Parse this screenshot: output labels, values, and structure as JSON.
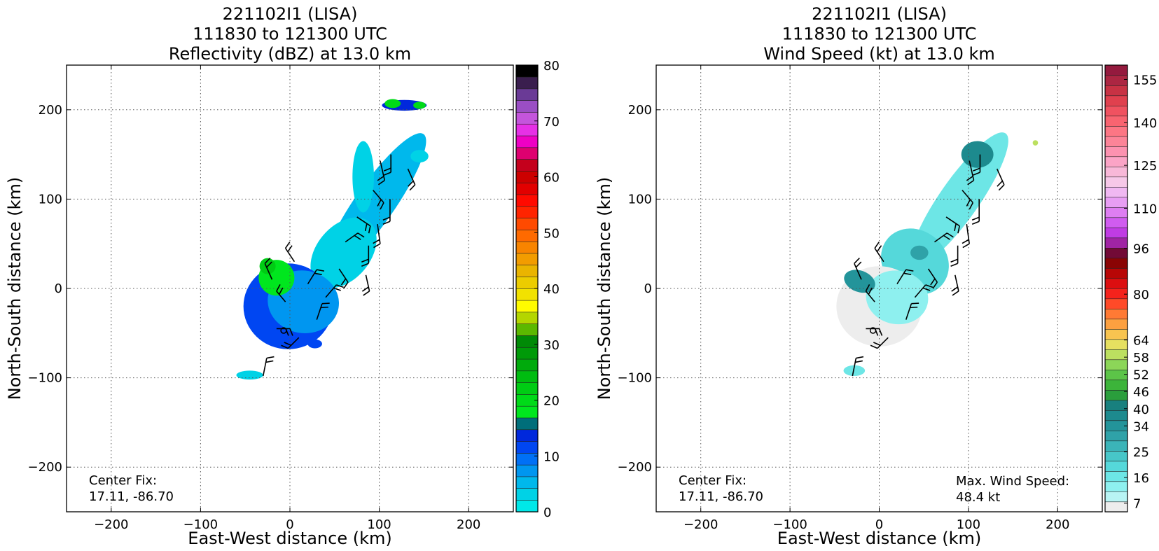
{
  "chart_data": [
    {
      "type": "heatmap",
      "title_lines": [
        "221102I1 (LISA)",
        "111830 to 121300 UTC",
        "Reflectivity (dBZ) at 13.0 km"
      ],
      "xlabel": "East-West distance (km)",
      "ylabel": "North-South distance (km)",
      "xlim": [
        -250,
        250
      ],
      "ylim": [
        -250,
        250
      ],
      "xticks": [
        -200,
        -100,
        0,
        100,
        200
      ],
      "yticks": [
        -200,
        -100,
        0,
        100,
        200
      ],
      "grid": true,
      "annotations": [
        {
          "lines": [
            "Center Fix:",
            "17.11, -86.70"
          ],
          "anchor": "bottom-left"
        }
      ],
      "colorbar": {
        "min": 0,
        "max": 80,
        "step": 2.5,
        "tick_labels": [
          "0",
          "10",
          "20",
          "30",
          "40",
          "50",
          "60",
          "70",
          "80"
        ],
        "tick_values": [
          0,
          10,
          20,
          30,
          40,
          50,
          60,
          70,
          80
        ],
        "colors": [
          "#00e8e8",
          "#00d2e6",
          "#00b8ec",
          "#0096f0",
          "#0070f6",
          "#0046f2",
          "#0028dc",
          "#006e7a",
          "#00e61e",
          "#00da18",
          "#00cc14",
          "#00bc10",
          "#00aa0c",
          "#009a08",
          "#008a06",
          "#5cb800",
          "#b4d600",
          "#fffc00",
          "#f2e200",
          "#eccc00",
          "#eab400",
          "#f29c00",
          "#f88400",
          "#ff6a00",
          "#ff4a00",
          "#ff2400",
          "#ff0a00",
          "#e20000",
          "#cc0000",
          "#c4001c",
          "#de0070",
          "#ee00c4",
          "#e630e6",
          "#c455dc",
          "#9a4ec4",
          "#6a3a96",
          "#3a1e4e",
          "#000000"
        ]
      },
      "echo_blobs": [
        {
          "cx": 95,
          "cy": 95,
          "rx": 22,
          "ry": 95,
          "rot": 35,
          "level": 2
        },
        {
          "cx": 60,
          "cy": 40,
          "rx": 30,
          "ry": 45,
          "rot": 40,
          "level": 1
        },
        {
          "cx": -2,
          "cy": -20,
          "rx": 50,
          "ry": 48,
          "rot": 0,
          "level": 5
        },
        {
          "cx": 15,
          "cy": -15,
          "rx": 40,
          "ry": 35,
          "rot": 10,
          "level": 3
        },
        {
          "cx": -15,
          "cy": 12,
          "rx": 20,
          "ry": 20,
          "rot": 0,
          "level": 8
        },
        {
          "cx": -25,
          "cy": 25,
          "rx": 9,
          "ry": 9,
          "rot": 0,
          "level": 10
        },
        {
          "cx": 128,
          "cy": 205,
          "rx": 25,
          "ry": 6,
          "rot": 0,
          "level": 6
        },
        {
          "cx": 115,
          "cy": 207,
          "rx": 9,
          "ry": 5,
          "rot": 0,
          "level": 9
        },
        {
          "cx": 145,
          "cy": 205,
          "rx": 7,
          "ry": 4,
          "rot": 0,
          "level": 9
        },
        {
          "cx": 82,
          "cy": 125,
          "rx": 12,
          "ry": 40,
          "rot": 0,
          "level": 1
        },
        {
          "cx": 145,
          "cy": 148,
          "rx": 10,
          "ry": 7,
          "rot": 0,
          "level": 1
        },
        {
          "cx": -45,
          "cy": -97,
          "rx": 15,
          "ry": 5,
          "rot": 0,
          "level": 1
        },
        {
          "cx": 28,
          "cy": -62,
          "rx": 8,
          "ry": 5,
          "rot": 0,
          "level": 5
        }
      ],
      "wind_barbs": [
        {
          "x": 113,
          "y": 150,
          "u": 0,
          "v": -20
        },
        {
          "x": 101,
          "y": 143,
          "u": 5,
          "v": -22
        },
        {
          "x": 132,
          "y": 134,
          "u": 8,
          "v": -18
        },
        {
          "x": 93,
          "y": 110,
          "u": 12,
          "v": -14
        },
        {
          "x": 112,
          "y": 100,
          "u": 0,
          "v": -25
        },
        {
          "x": 75,
          "y": 80,
          "u": 15,
          "v": -10
        },
        {
          "x": 98,
          "y": 72,
          "u": 3,
          "v": -22
        },
        {
          "x": 62,
          "y": 52,
          "u": 14,
          "v": 10
        },
        {
          "x": 88,
          "y": 48,
          "u": 0,
          "v": -20
        },
        {
          "x": 55,
          "y": 22,
          "u": 10,
          "v": -15
        },
        {
          "x": 85,
          "y": 15,
          "u": 4,
          "v": -18
        },
        {
          "x": 5,
          "y": 30,
          "u": -10,
          "v": 15
        },
        {
          "x": -20,
          "y": 10,
          "u": -8,
          "v": 18
        },
        {
          "x": 20,
          "y": 5,
          "u": 10,
          "v": 16
        },
        {
          "x": 40,
          "y": -10,
          "u": 12,
          "v": 14
        },
        {
          "x": -5,
          "y": -15,
          "u": -10,
          "v": 12
        },
        {
          "x": 30,
          "y": -35,
          "u": 6,
          "v": 18
        },
        {
          "x": 10,
          "y": -55,
          "u": -12,
          "v": -12
        },
        {
          "x": -15,
          "y": -45,
          "u": 15,
          "v": 0
        },
        {
          "x": -30,
          "y": -98,
          "u": 4,
          "v": 20
        }
      ],
      "center_marker": {
        "x": -7,
        "y": -47
      }
    },
    {
      "type": "heatmap",
      "title_lines": [
        "221102I1 (LISA)",
        "111830 to 121300 UTC",
        "Wind Speed (kt) at 13.0 km"
      ],
      "xlabel": "East-West distance (km)",
      "ylabel": "North-South distance (km)",
      "xlim": [
        -250,
        250
      ],
      "ylim": [
        -250,
        250
      ],
      "xticks": [
        -200,
        -100,
        0,
        100,
        200
      ],
      "yticks": [
        -200,
        -100,
        0,
        100,
        200
      ],
      "grid": true,
      "annotations": [
        {
          "lines": [
            "Center Fix:",
            "17.11, -86.70"
          ],
          "anchor": "bottom-left"
        },
        {
          "lines": [
            "Max. Wind Speed:",
            "48.4 kt"
          ],
          "anchor": "bottom-right"
        }
      ],
      "colorbar": {
        "min": 4,
        "max": 160,
        "step": 3,
        "tick_labels": [
          "7",
          "16",
          "25",
          "34",
          "40",
          "46",
          "52",
          "58",
          "64",
          "80",
          "96",
          "110",
          "125",
          "140",
          "155"
        ],
        "tick_values": [
          7,
          16,
          25,
          34,
          40,
          46,
          52,
          58,
          64,
          80,
          96,
          110,
          125,
          140,
          155
        ],
        "colors": [
          "#ededed",
          "#b8f4f4",
          "#8ef0ef",
          "#6de6e6",
          "#55d8da",
          "#47c6c8",
          "#3bb4b8",
          "#2fa2a8",
          "#23949a",
          "#1d8a8e",
          "#18807e",
          "#2a9e3c",
          "#3cb43a",
          "#5cc448",
          "#8cd658",
          "#bce060",
          "#e6e060",
          "#f8c450",
          "#fca040",
          "#ff7a34",
          "#ff4a28",
          "#f4221c",
          "#dc0e10",
          "#b80606",
          "#8a0404",
          "#720a36",
          "#a024a4",
          "#c03ce4",
          "#d05cf0",
          "#de7ef2",
          "#e89ef4",
          "#f0b8f2",
          "#f6c8e8",
          "#f8b8d8",
          "#fba4c6",
          "#fc92b0",
          "#fc8498",
          "#fc7684",
          "#f86470",
          "#f05260",
          "#e0404e",
          "#c83244",
          "#ac2642",
          "#941a3e"
        ]
      },
      "speed_blobs": [
        {
          "cx": 90,
          "cy": 100,
          "rx": 22,
          "ry": 90,
          "rot": 35,
          "level": 3
        },
        {
          "cx": 110,
          "cy": 150,
          "rx": 18,
          "ry": 15,
          "rot": 0,
          "level": 9
        },
        {
          "cx": 40,
          "cy": 30,
          "rx": 40,
          "ry": 35,
          "rot": 40,
          "level": 4
        },
        {
          "cx": 0,
          "cy": -20,
          "rx": 48,
          "ry": 45,
          "rot": 0,
          "level": 0
        },
        {
          "cx": 20,
          "cy": -10,
          "rx": 35,
          "ry": 30,
          "rot": 10,
          "level": 2
        },
        {
          "cx": -22,
          "cy": 8,
          "rx": 18,
          "ry": 12,
          "rot": 20,
          "level": 8
        },
        {
          "cx": 45,
          "cy": 40,
          "rx": 10,
          "ry": 8,
          "rot": 0,
          "level": 7
        },
        {
          "cx": -28,
          "cy": -92,
          "rx": 12,
          "ry": 6,
          "rot": 0,
          "level": 3
        },
        {
          "cx": 175,
          "cy": 163,
          "rx": 3,
          "ry": 3,
          "rot": 0,
          "level": 15
        }
      ],
      "wind_barbs": [
        {
          "x": 113,
          "y": 150,
          "u": 0,
          "v": -20
        },
        {
          "x": 101,
          "y": 143,
          "u": 5,
          "v": -22
        },
        {
          "x": 132,
          "y": 134,
          "u": 8,
          "v": -18
        },
        {
          "x": 93,
          "y": 110,
          "u": 12,
          "v": -14
        },
        {
          "x": 112,
          "y": 100,
          "u": 0,
          "v": -25
        },
        {
          "x": 75,
          "y": 80,
          "u": 15,
          "v": -10
        },
        {
          "x": 98,
          "y": 72,
          "u": 3,
          "v": -22
        },
        {
          "x": 62,
          "y": 52,
          "u": 14,
          "v": 10
        },
        {
          "x": 88,
          "y": 48,
          "u": 0,
          "v": -20
        },
        {
          "x": 55,
          "y": 22,
          "u": 10,
          "v": -15
        },
        {
          "x": 85,
          "y": 15,
          "u": 4,
          "v": -18
        },
        {
          "x": 5,
          "y": 30,
          "u": -10,
          "v": 15
        },
        {
          "x": -20,
          "y": 10,
          "u": -8,
          "v": 18
        },
        {
          "x": 20,
          "y": 5,
          "u": 10,
          "v": 16
        },
        {
          "x": 40,
          "y": -10,
          "u": 12,
          "v": 14
        },
        {
          "x": -5,
          "y": -15,
          "u": -10,
          "v": 12
        },
        {
          "x": 30,
          "y": -35,
          "u": 6,
          "v": 18
        },
        {
          "x": 10,
          "y": -55,
          "u": -12,
          "v": -12
        },
        {
          "x": -15,
          "y": -45,
          "u": 15,
          "v": 0
        },
        {
          "x": -30,
          "y": -98,
          "u": 4,
          "v": 20
        }
      ],
      "center_marker": {
        "x": -7,
        "y": -47
      }
    }
  ]
}
